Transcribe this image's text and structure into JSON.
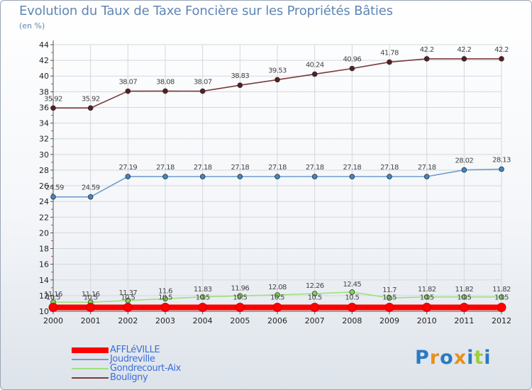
{
  "title": "Evolution du Taux de Taxe Foncière sur les Propriétés Bâties",
  "subtitle": "(en %)",
  "brand": "Proxiti",
  "chart_data": {
    "type": "line",
    "title": "Evolution du Taux de Taxe Foncière sur les Propriétés Bâties",
    "ylabel": "(en %)",
    "xlabel": "",
    "x": [
      "2000",
      "2001",
      "2002",
      "2003",
      "2004",
      "2005",
      "2006",
      "2007",
      "2008",
      "2009",
      "2010",
      "2011",
      "2012"
    ],
    "ylim": [
      10,
      44
    ],
    "yticks": [
      10,
      12,
      14,
      16,
      18,
      20,
      22,
      24,
      26,
      28,
      30,
      32,
      34,
      36,
      38,
      40,
      42,
      44
    ],
    "grid": true,
    "legend_position": "bottom-left",
    "series": [
      {
        "name": "AFFLéVILLE",
        "color": "#ff0000",
        "values": [
          10.5,
          10.5,
          10.5,
          10.5,
          10.5,
          10.5,
          10.5,
          10.5,
          10.5,
          10.5,
          10.5,
          10.5,
          10.5
        ],
        "labels": [
          "10.5",
          "10.5",
          "10.5",
          "10.5",
          "10.5",
          "10.5",
          "10.5",
          "10.5",
          "10.5",
          "10.5",
          "10.5",
          "10.5",
          "10.5"
        ]
      },
      {
        "name": "Joudreville",
        "color": "#6f9ccf",
        "values": [
          24.59,
          24.59,
          27.19,
          27.18,
          27.18,
          27.18,
          27.18,
          27.18,
          27.18,
          27.18,
          27.18,
          28.02,
          28.13
        ],
        "labels": [
          "24.59",
          "24.59",
          "27.19",
          "27.18",
          "27.18",
          "27.18",
          "27.18",
          "27.18",
          "27.18",
          "27.18",
          "27.18",
          "28.02",
          "28.13"
        ]
      },
      {
        "name": "Gondrecourt-Aix",
        "color": "#9be27a",
        "values": [
          11.16,
          11.16,
          11.37,
          11.6,
          11.83,
          11.96,
          12.08,
          12.26,
          12.45,
          11.7,
          11.82,
          11.82,
          11.82
        ],
        "labels": [
          "11.16",
          "11.16",
          "11.37",
          "11.6",
          "11.83",
          "11.96",
          "12.08",
          "12.26",
          "12.45",
          "11.7",
          "11.82",
          "11.82",
          "11.82"
        ]
      },
      {
        "name": "Bouligny",
        "color": "#7a3b3b",
        "values": [
          35.92,
          35.92,
          38.07,
          38.08,
          38.07,
          38.83,
          39.53,
          40.24,
          40.96,
          41.78,
          42.2,
          42.2,
          42.2
        ],
        "labels": [
          "35.92",
          "35.92",
          "38.07",
          "38.08",
          "38.07",
          "38.83",
          "39.53",
          "40.24",
          "40.96",
          "41.78",
          "42.2",
          "42.2",
          "42.2"
        ]
      }
    ]
  }
}
